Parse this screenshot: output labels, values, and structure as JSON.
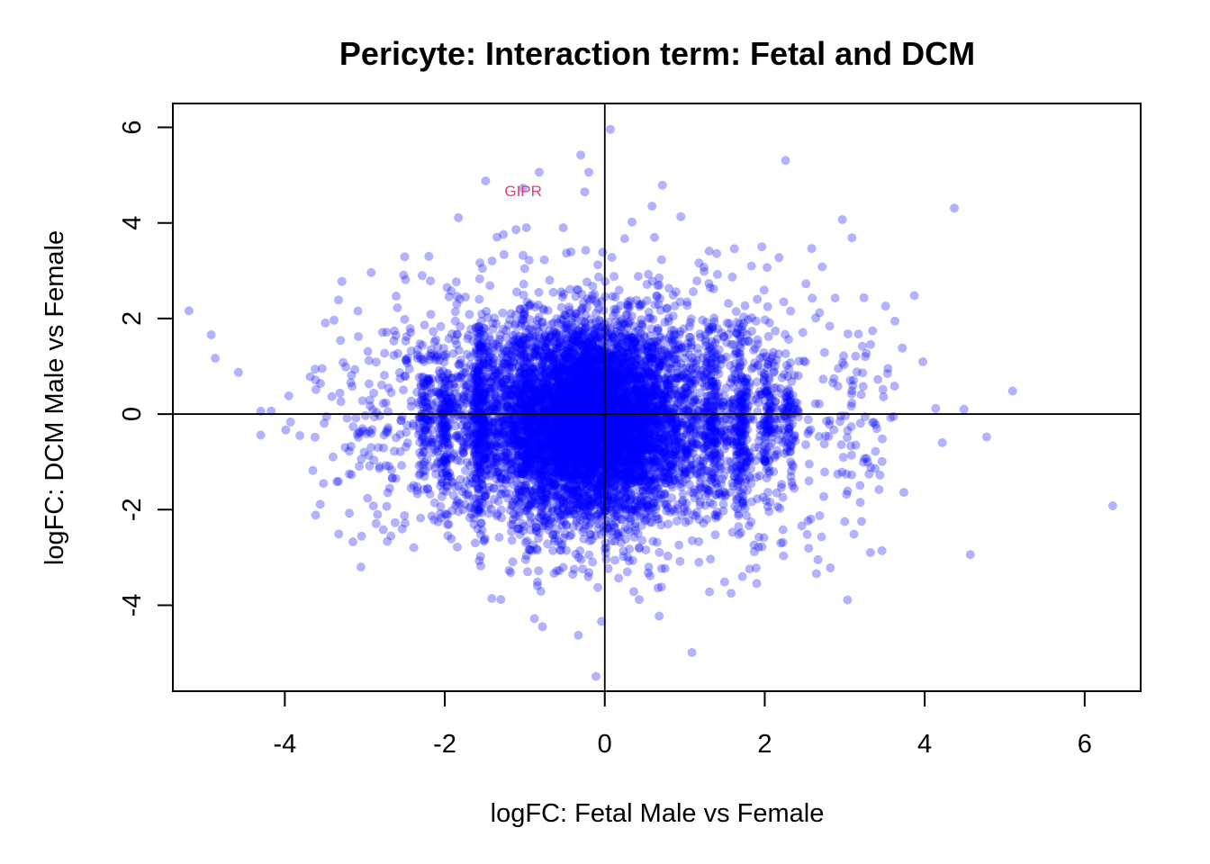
{
  "chart_data": {
    "type": "scatter",
    "title": "Pericyte: Interaction term: Fetal and DCM",
    "xlabel": "logFC: Fetal Male vs Female",
    "ylabel": "logFC: DCM Male vs Female",
    "xlim": [
      -5.4,
      6.7
    ],
    "ylim": [
      -5.8,
      6.5
    ],
    "xticks": [
      -4,
      -2,
      0,
      2,
      4,
      6
    ],
    "yticks": [
      -4,
      -2,
      0,
      2,
      4,
      6
    ],
    "xtick_labels": [
      "-4",
      "-2",
      "0",
      "2",
      "4",
      "6"
    ],
    "ytick_labels": [
      "-4",
      "-2",
      "0",
      "2",
      "4",
      "6"
    ],
    "reference_lines": {
      "x": 0,
      "y": 0
    },
    "point_color": "#0000ff",
    "point_opacity": 0.3,
    "annotation_color": "#e0407a",
    "annotations": [
      {
        "label": "GIPR",
        "x": -1.02,
        "y": 4.67
      }
    ],
    "points": {
      "outliers": [
        [
          0.07,
          5.96
        ],
        [
          -0.3,
          5.42
        ],
        [
          -0.82,
          5.06
        ],
        [
          -1.49,
          4.88
        ],
        [
          -0.2,
          5.06
        ],
        [
          -0.25,
          4.65
        ],
        [
          0.72,
          4.79
        ],
        [
          2.26,
          5.31
        ],
        [
          4.37,
          4.31
        ],
        [
          -1.83,
          4.11
        ],
        [
          -1.02,
          4.73
        ],
        [
          -1.11,
          3.86
        ],
        [
          -0.98,
          3.9
        ],
        [
          -0.52,
          3.9
        ],
        [
          0.34,
          4.02
        ],
        [
          0.95,
          4.13
        ],
        [
          0.59,
          4.35
        ],
        [
          2.97,
          4.07
        ],
        [
          3.09,
          3.69
        ],
        [
          3.87,
          2.48
        ],
        [
          3.51,
          2.26
        ],
        [
          3.72,
          1.38
        ],
        [
          -5.2,
          2.16
        ],
        [
          -4.92,
          1.66
        ],
        [
          -4.87,
          1.17
        ],
        [
          -4.3,
          0.06
        ],
        [
          -4.3,
          -0.44
        ],
        [
          -3.65,
          -1.18
        ],
        [
          -3.33,
          -1.41
        ],
        [
          -3.95,
          0.38
        ],
        [
          6.35,
          -1.92
        ],
        [
          4.57,
          -2.94
        ],
        [
          4.22,
          -0.6
        ],
        [
          4.49,
          0.1
        ],
        [
          3.74,
          -1.64
        ],
        [
          3.38,
          -1.14
        ],
        [
          2.82,
          -3.22
        ],
        [
          2.2,
          -2.7
        ],
        [
          1.72,
          -3.4
        ],
        [
          1.09,
          -4.99
        ],
        [
          -0.11,
          -5.49
        ],
        [
          -0.04,
          -4.34
        ],
        [
          -0.33,
          -4.63
        ],
        [
          -0.88,
          -4.28
        ],
        [
          -0.78,
          -4.45
        ],
        [
          -1.3,
          -3.88
        ],
        [
          -1.55,
          -3.18
        ],
        [
          0.68,
          -4.23
        ],
        [
          0.43,
          -3.88
        ],
        [
          1.31,
          -3.72
        ],
        [
          1.58,
          -3.75
        ],
        [
          -2.86,
          -2.29
        ],
        [
          -2.77,
          -2.42
        ],
        [
          3.0,
          -2.25
        ],
        [
          2.71,
          -2.57
        ],
        [
          -1.26,
          3.34
        ],
        [
          -1.53,
          3.05
        ],
        [
          -2.5,
          3.29
        ],
        [
          -2.2,
          3.3
        ],
        [
          -2.92,
          2.96
        ],
        [
          1.4,
          3.36
        ],
        [
          1.62,
          3.46
        ],
        [
          2.03,
          3.07
        ],
        [
          2.88,
          2.43
        ],
        [
          3.22,
          1.42
        ]
      ],
      "clusters": [
        {
          "cx": -0.2,
          "cy": -0.2,
          "sx": 0.55,
          "sy": 1.0,
          "n": 4200
        },
        {
          "cx": -0.1,
          "cy": -0.1,
          "sx": 1.0,
          "sy": 1.15,
          "n": 2200
        },
        {
          "cx": 0.0,
          "cy": 0.0,
          "sx": 1.6,
          "sy": 1.25,
          "n": 1100
        },
        {
          "cx": -1.55,
          "cy": -0.1,
          "sx": 0.05,
          "sy": 1.0,
          "n": 260
        },
        {
          "cx": -2.0,
          "cy": -0.2,
          "sx": 0.05,
          "sy": 0.8,
          "n": 140
        },
        {
          "cx": -2.25,
          "cy": -0.1,
          "sx": 0.05,
          "sy": 0.6,
          "n": 90
        },
        {
          "cx": 1.7,
          "cy": -0.2,
          "sx": 0.05,
          "sy": 0.9,
          "n": 160
        },
        {
          "cx": 2.05,
          "cy": -0.1,
          "sx": 0.05,
          "sy": 0.7,
          "n": 100
        },
        {
          "cx": 2.3,
          "cy": -0.2,
          "sx": 0.05,
          "sy": 0.6,
          "n": 70
        },
        {
          "cx": 1.35,
          "cy": -0.2,
          "sx": 0.05,
          "sy": 1.0,
          "n": 120
        },
        {
          "cx": -1.0,
          "cy": 0.0,
          "sx": 0.05,
          "sy": 1.2,
          "n": 120
        },
        {
          "cx": 0.0,
          "cy": 0.0,
          "sx": 2.3,
          "sy": 1.35,
          "n": 260
        }
      ]
    }
  }
}
